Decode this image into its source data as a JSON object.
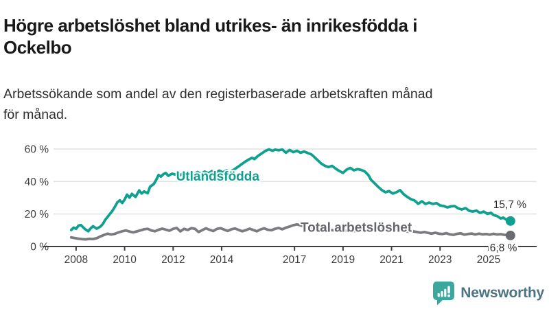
{
  "header": {
    "title_line1": "Högre arbetslöshet bland utrikes- än inrikesfödda i",
    "title_line2": "Ockelbo",
    "subtitle_line1": "Arbetssökande som andel av den registerbaserade arbetskraften månad",
    "subtitle_line2": "för månad."
  },
  "footer": {
    "brand": "Newsworthy",
    "icon_color": "#3BA79D",
    "text_color": "#4E7383"
  },
  "chart_data": {
    "type": "line",
    "x_ticks": [
      2008,
      2010,
      2012,
      2014,
      2017,
      2019,
      2021,
      2023,
      2025
    ],
    "y_ticks": [
      0,
      20,
      40,
      60
    ],
    "y_tick_suffix": " %",
    "x_range": [
      2007.07,
      2026.98
    ],
    "y_range": [
      0,
      60
    ],
    "grid": true,
    "unit": "%",
    "series": [
      {
        "name": "Utlandsfödda",
        "color": "#10A08F",
        "label_color": "#10A08F",
        "dot_color": "#10A08F",
        "line_width": 3.8,
        "name_label_at": [
          2012.12,
          43.3
        ],
        "end_value": 15.7,
        "end_label": "15,7 %",
        "end_label_offset": [
          -25,
          -19
        ],
        "points": [
          [
            2007.8,
            10.2
          ],
          [
            2007.9,
            11.6
          ],
          [
            2008.0,
            10.9
          ],
          [
            2008.1,
            12.9
          ],
          [
            2008.2,
            13.2
          ],
          [
            2008.35,
            10.9
          ],
          [
            2008.5,
            9.4
          ],
          [
            2008.6,
            11.2
          ],
          [
            2008.7,
            12.5
          ],
          [
            2008.85,
            11.0
          ],
          [
            2009.0,
            12.2
          ],
          [
            2009.1,
            13.8
          ],
          [
            2009.2,
            16.4
          ],
          [
            2009.35,
            19.2
          ],
          [
            2009.5,
            22.0
          ],
          [
            2009.6,
            24.5
          ],
          [
            2009.7,
            27.2
          ],
          [
            2009.8,
            28.4
          ],
          [
            2009.9,
            26.8
          ],
          [
            2010.0,
            28.9
          ],
          [
            2010.1,
            31.9
          ],
          [
            2010.2,
            30.1
          ],
          [
            2010.3,
            32.4
          ],
          [
            2010.45,
            30.5
          ],
          [
            2010.6,
            34.5
          ],
          [
            2010.7,
            32.6
          ],
          [
            2010.8,
            33.9
          ],
          [
            2010.95,
            32.8
          ],
          [
            2011.05,
            36.8
          ],
          [
            2011.2,
            38.4
          ],
          [
            2011.3,
            41.0
          ],
          [
            2011.4,
            44.0
          ],
          [
            2011.5,
            43.0
          ],
          [
            2011.6,
            44.6
          ],
          [
            2011.7,
            45.2
          ],
          [
            2011.8,
            43.5
          ],
          [
            2011.95,
            44.8
          ],
          [
            2012.1,
            44.3
          ],
          [
            2012.25,
            43.6
          ],
          [
            2012.4,
            44.9
          ],
          [
            2012.55,
            43.9
          ],
          [
            2012.7,
            45.4
          ],
          [
            2012.85,
            44.3
          ],
          [
            2013.0,
            45.8
          ],
          [
            2013.15,
            44.7
          ],
          [
            2013.3,
            46.1
          ],
          [
            2013.45,
            45.0
          ],
          [
            2013.6,
            46.4
          ],
          [
            2013.75,
            45.3
          ],
          [
            2013.9,
            46.7
          ],
          [
            2014.05,
            45.6
          ],
          [
            2014.2,
            46.9
          ],
          [
            2014.35,
            46.1
          ],
          [
            2014.5,
            47.3
          ],
          [
            2014.65,
            48.8
          ],
          [
            2014.8,
            50.4
          ],
          [
            2014.95,
            52.0
          ],
          [
            2015.1,
            53.4
          ],
          [
            2015.25,
            54.6
          ],
          [
            2015.35,
            53.8
          ],
          [
            2015.5,
            55.8
          ],
          [
            2015.65,
            57.3
          ],
          [
            2015.8,
            58.8
          ],
          [
            2015.95,
            59.8
          ],
          [
            2016.1,
            58.9
          ],
          [
            2016.2,
            59.6
          ],
          [
            2016.35,
            59.2
          ],
          [
            2016.5,
            59.7
          ],
          [
            2016.65,
            57.7
          ],
          [
            2016.8,
            59.4
          ],
          [
            2016.95,
            58.1
          ],
          [
            2017.1,
            58.9
          ],
          [
            2017.25,
            57.7
          ],
          [
            2017.4,
            58.5
          ],
          [
            2017.55,
            57.5
          ],
          [
            2017.7,
            56.6
          ],
          [
            2017.8,
            55.3
          ],
          [
            2017.95,
            53.2
          ],
          [
            2018.1,
            51.1
          ],
          [
            2018.25,
            49.7
          ],
          [
            2018.4,
            48.9
          ],
          [
            2018.55,
            49.6
          ],
          [
            2018.7,
            47.9
          ],
          [
            2018.85,
            46.5
          ],
          [
            2019.0,
            45.3
          ],
          [
            2019.15,
            47.3
          ],
          [
            2019.3,
            48.4
          ],
          [
            2019.45,
            46.9
          ],
          [
            2019.6,
            47.6
          ],
          [
            2019.75,
            47.1
          ],
          [
            2019.9,
            46.2
          ],
          [
            2020.05,
            43.8
          ],
          [
            2020.15,
            41.1
          ],
          [
            2020.3,
            38.9
          ],
          [
            2020.45,
            36.7
          ],
          [
            2020.6,
            34.7
          ],
          [
            2020.75,
            33.4
          ],
          [
            2020.9,
            34.1
          ],
          [
            2021.05,
            32.6
          ],
          [
            2021.2,
            33.4
          ],
          [
            2021.35,
            34.7
          ],
          [
            2021.5,
            32.2
          ],
          [
            2021.65,
            30.5
          ],
          [
            2021.8,
            29.1
          ],
          [
            2021.95,
            28.3
          ],
          [
            2022.1,
            26.3
          ],
          [
            2022.25,
            27.8
          ],
          [
            2022.4,
            26.2
          ],
          [
            2022.55,
            27.0
          ],
          [
            2022.7,
            26.2
          ],
          [
            2022.85,
            26.7
          ],
          [
            2023.0,
            25.3
          ],
          [
            2023.15,
            24.9
          ],
          [
            2023.3,
            24.1
          ],
          [
            2023.45,
            24.7
          ],
          [
            2023.6,
            24.9
          ],
          [
            2023.75,
            23.4
          ],
          [
            2023.9,
            22.8
          ],
          [
            2024.05,
            23.6
          ],
          [
            2024.2,
            22.0
          ],
          [
            2024.35,
            21.5
          ],
          [
            2024.5,
            22.1
          ],
          [
            2024.65,
            20.7
          ],
          [
            2024.8,
            21.5
          ],
          [
            2024.95,
            20.1
          ],
          [
            2025.1,
            20.7
          ],
          [
            2025.2,
            19.4
          ],
          [
            2025.35,
            18.7
          ],
          [
            2025.5,
            17.3
          ],
          [
            2025.6,
            17.8
          ],
          [
            2025.75,
            16.4
          ],
          [
            2025.9,
            15.7
          ]
        ]
      },
      {
        "name": "Total arbetslöshet",
        "color": "#7B7C80",
        "label_color": "#64666B",
        "dot_color": "#6B6C70",
        "line_width": 3.8,
        "name_label_at": [
          2017.25,
          11.8
        ],
        "end_value": 6.8,
        "end_label": "6,8 %",
        "end_label_offset": [
          -30,
          23
        ],
        "points": [
          [
            2007.8,
            5.6
          ],
          [
            2007.95,
            5.2
          ],
          [
            2008.1,
            4.8
          ],
          [
            2008.25,
            4.5
          ],
          [
            2008.4,
            4.4
          ],
          [
            2008.55,
            4.7
          ],
          [
            2008.7,
            4.6
          ],
          [
            2008.85,
            5.1
          ],
          [
            2009.0,
            6.2
          ],
          [
            2009.15,
            7.1
          ],
          [
            2009.3,
            7.9
          ],
          [
            2009.45,
            7.4
          ],
          [
            2009.6,
            7.8
          ],
          [
            2009.75,
            8.7
          ],
          [
            2009.9,
            9.4
          ],
          [
            2010.05,
            9.9
          ],
          [
            2010.2,
            9.2
          ],
          [
            2010.35,
            8.7
          ],
          [
            2010.5,
            9.3
          ],
          [
            2010.65,
            9.9
          ],
          [
            2010.8,
            10.6
          ],
          [
            2010.95,
            10.9
          ],
          [
            2011.1,
            9.9
          ],
          [
            2011.25,
            9.4
          ],
          [
            2011.4,
            10.3
          ],
          [
            2011.55,
            11.0
          ],
          [
            2011.7,
            10.4
          ],
          [
            2011.85,
            9.7
          ],
          [
            2012.0,
            10.9
          ],
          [
            2012.15,
            11.4
          ],
          [
            2012.3,
            9.3
          ],
          [
            2012.45,
            10.9
          ],
          [
            2012.6,
            10.2
          ],
          [
            2012.75,
            11.3
          ],
          [
            2012.9,
            10.9
          ],
          [
            2013.05,
            8.9
          ],
          [
            2013.2,
            10.1
          ],
          [
            2013.35,
            11.2
          ],
          [
            2013.5,
            10.3
          ],
          [
            2013.65,
            9.5
          ],
          [
            2013.8,
            10.8
          ],
          [
            2013.95,
            11.3
          ],
          [
            2014.1,
            10.4
          ],
          [
            2014.25,
            9.6
          ],
          [
            2014.4,
            10.6
          ],
          [
            2014.55,
            11.1
          ],
          [
            2014.7,
            10.2
          ],
          [
            2014.85,
            9.4
          ],
          [
            2015.0,
            10.1
          ],
          [
            2015.15,
            11.0
          ],
          [
            2015.3,
            10.2
          ],
          [
            2015.45,
            9.4
          ],
          [
            2015.6,
            10.5
          ],
          [
            2015.75,
            11.2
          ],
          [
            2015.9,
            10.3
          ],
          [
            2016.05,
            10.0
          ],
          [
            2016.2,
            10.9
          ],
          [
            2016.35,
            11.4
          ],
          [
            2016.5,
            10.6
          ],
          [
            2016.65,
            11.6
          ],
          [
            2016.8,
            12.3
          ],
          [
            2016.95,
            13.1
          ],
          [
            2017.1,
            13.6
          ],
          [
            2017.25,
            13.0
          ],
          [
            2017.4,
            12.3
          ],
          [
            2017.55,
            11.8
          ],
          [
            2017.7,
            11.4
          ],
          [
            2017.85,
            11.0
          ],
          [
            2018.0,
            10.7
          ],
          [
            2018.3,
            10.3
          ],
          [
            2018.6,
            10.0
          ],
          [
            2018.9,
            9.8
          ],
          [
            2019.2,
            9.6
          ],
          [
            2019.5,
            9.5
          ],
          [
            2019.8,
            9.7
          ],
          [
            2020.1,
            10.4
          ],
          [
            2020.4,
            10.8
          ],
          [
            2020.7,
            10.5
          ],
          [
            2021.0,
            10.1
          ],
          [
            2021.3,
            9.8
          ],
          [
            2021.6,
            9.3
          ],
          [
            2021.75,
            9.1
          ],
          [
            2021.9,
            9.3
          ],
          [
            2022.05,
            8.9
          ],
          [
            2022.2,
            8.5
          ],
          [
            2022.35,
            8.9
          ],
          [
            2022.5,
            8.4
          ],
          [
            2022.65,
            7.9
          ],
          [
            2022.8,
            8.5
          ],
          [
            2022.95,
            7.9
          ],
          [
            2023.1,
            7.7
          ],
          [
            2023.25,
            8.2
          ],
          [
            2023.4,
            7.5
          ],
          [
            2023.55,
            7.2
          ],
          [
            2023.7,
            7.8
          ],
          [
            2023.85,
            8.1
          ],
          [
            2024.0,
            7.3
          ],
          [
            2024.15,
            7.7
          ],
          [
            2024.3,
            8.0
          ],
          [
            2024.45,
            7.4
          ],
          [
            2024.6,
            7.9
          ],
          [
            2024.75,
            7.5
          ],
          [
            2024.9,
            7.7
          ],
          [
            2025.05,
            7.3
          ],
          [
            2025.2,
            7.8
          ],
          [
            2025.35,
            7.4
          ],
          [
            2025.5,
            7.6
          ],
          [
            2025.65,
            7.2
          ],
          [
            2025.9,
            6.8
          ]
        ]
      }
    ]
  }
}
